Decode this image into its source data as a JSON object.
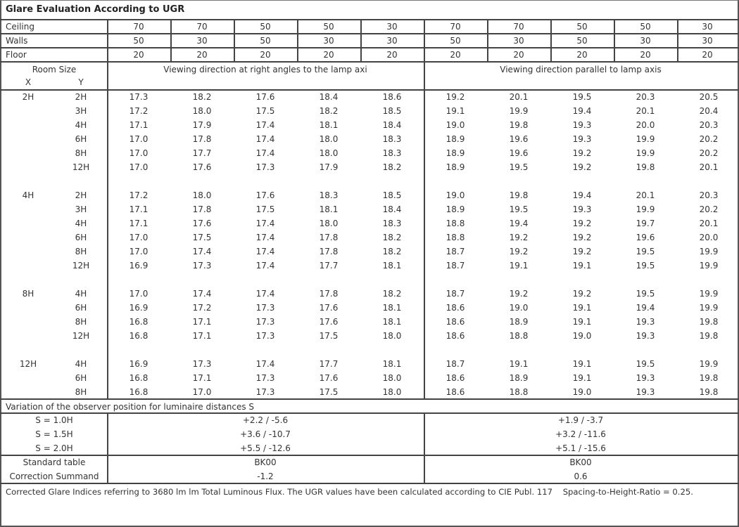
{
  "title": "Glare Evaluation According to UGR",
  "reflectances": [
    {
      "label": "Ceiling",
      "values": [
        "70",
        "70",
        "50",
        "50",
        "30",
        "70",
        "70",
        "50",
        "50",
        "30"
      ]
    },
    {
      "label": "Walls",
      "values": [
        "50",
        "30",
        "50",
        "30",
        "30",
        "50",
        "30",
        "50",
        "30",
        "30"
      ]
    },
    {
      "label": "Floor",
      "values": [
        "20",
        "20",
        "20",
        "20",
        "20",
        "20",
        "20",
        "20",
        "20",
        "20"
      ]
    }
  ],
  "room_size": {
    "label": "Room Size",
    "x": "X",
    "y": "Y"
  },
  "directions": [
    "Viewing direction at right angles to the lamp axi",
    "Viewing direction parallel to lamp axis"
  ],
  "groups": [
    {
      "x": "2H",
      "rows": [
        {
          "y": "2H",
          "v": [
            "17.3",
            "18.2",
            "17.6",
            "18.4",
            "18.6",
            "19.2",
            "20.1",
            "19.5",
            "20.3",
            "20.5"
          ]
        },
        {
          "y": "3H",
          "v": [
            "17.2",
            "18.0",
            "17.5",
            "18.2",
            "18.5",
            "19.1",
            "19.9",
            "19.4",
            "20.1",
            "20.4"
          ]
        },
        {
          "y": "4H",
          "v": [
            "17.1",
            "17.9",
            "17.4",
            "18.1",
            "18.4",
            "19.0",
            "19.8",
            "19.3",
            "20.0",
            "20.3"
          ]
        },
        {
          "y": "6H",
          "v": [
            "17.0",
            "17.8",
            "17.4",
            "18.0",
            "18.3",
            "18.9",
            "19.6",
            "19.3",
            "19.9",
            "20.2"
          ]
        },
        {
          "y": "8H",
          "v": [
            "17.0",
            "17.7",
            "17.4",
            "18.0",
            "18.3",
            "18.9",
            "19.6",
            "19.2",
            "19.9",
            "20.2"
          ]
        },
        {
          "y": "12H",
          "v": [
            "17.0",
            "17.6",
            "17.3",
            "17.9",
            "18.2",
            "18.9",
            "19.5",
            "19.2",
            "19.8",
            "20.1"
          ]
        }
      ]
    },
    {
      "x": "4H",
      "rows": [
        {
          "y": "2H",
          "v": [
            "17.2",
            "18.0",
            "17.6",
            "18.3",
            "18.5",
            "19.0",
            "19.8",
            "19.4",
            "20.1",
            "20.3"
          ]
        },
        {
          "y": "3H",
          "v": [
            "17.1",
            "17.8",
            "17.5",
            "18.1",
            "18.4",
            "18.9",
            "19.5",
            "19.3",
            "19.9",
            "20.2"
          ]
        },
        {
          "y": "4H",
          "v": [
            "17.1",
            "17.6",
            "17.4",
            "18.0",
            "18.3",
            "18.8",
            "19.4",
            "19.2",
            "19.7",
            "20.1"
          ]
        },
        {
          "y": "6H",
          "v": [
            "17.0",
            "17.5",
            "17.4",
            "17.8",
            "18.2",
            "18.8",
            "19.2",
            "19.2",
            "19.6",
            "20.0"
          ]
        },
        {
          "y": "8H",
          "v": [
            "17.0",
            "17.4",
            "17.4",
            "17.8",
            "18.2",
            "18.7",
            "19.2",
            "19.2",
            "19.5",
            "19.9"
          ]
        },
        {
          "y": "12H",
          "v": [
            "16.9",
            "17.3",
            "17.4",
            "17.7",
            "18.1",
            "18.7",
            "19.1",
            "19.1",
            "19.5",
            "19.9"
          ]
        }
      ]
    },
    {
      "x": "8H",
      "rows": [
        {
          "y": "4H",
          "v": [
            "17.0",
            "17.4",
            "17.4",
            "17.8",
            "18.2",
            "18.7",
            "19.2",
            "19.2",
            "19.5",
            "19.9"
          ]
        },
        {
          "y": "6H",
          "v": [
            "16.9",
            "17.2",
            "17.3",
            "17.6",
            "18.1",
            "18.6",
            "19.0",
            "19.1",
            "19.4",
            "19.9"
          ]
        },
        {
          "y": "8H",
          "v": [
            "16.8",
            "17.1",
            "17.3",
            "17.6",
            "18.1",
            "18.6",
            "18.9",
            "19.1",
            "19.3",
            "19.8"
          ]
        },
        {
          "y": "12H",
          "v": [
            "16.8",
            "17.1",
            "17.3",
            "17.5",
            "18.0",
            "18.6",
            "18.8",
            "19.0",
            "19.3",
            "19.8"
          ]
        }
      ]
    },
    {
      "x": "12H",
      "rows": [
        {
          "y": "4H",
          "v": [
            "16.9",
            "17.3",
            "17.4",
            "17.7",
            "18.1",
            "18.7",
            "19.1",
            "19.1",
            "19.5",
            "19.9"
          ]
        },
        {
          "y": "6H",
          "v": [
            "16.8",
            "17.1",
            "17.3",
            "17.6",
            "18.0",
            "18.6",
            "18.9",
            "19.1",
            "19.3",
            "19.8"
          ]
        },
        {
          "y": "8H",
          "v": [
            "16.8",
            "17.0",
            "17.3",
            "17.5",
            "18.0",
            "18.6",
            "18.8",
            "19.0",
            "19.3",
            "19.8"
          ]
        }
      ]
    }
  ],
  "variation": {
    "label": "Variation of the observer position for luminaire distances S",
    "rows": [
      {
        "s": "S = 1.0H",
        "a": "+2.2 / -5.6",
        "b": "+1.9 / -3.7"
      },
      {
        "s": "S = 1.5H",
        "a": "+3.6 / -10.7",
        "b": "+3.2 / -11.6"
      },
      {
        "s": "S = 2.0H",
        "a": "+5.5 / -12.6",
        "b": "+5.1 / -15.6"
      }
    ]
  },
  "standard_table": {
    "label": "Standard table",
    "a": "BK00",
    "b": "BK00"
  },
  "correction": {
    "label": "Correction Summand",
    "a": "-1.2",
    "b": "0.6"
  },
  "footer": "Corrected Glare Indices referring to 3680 lm lm Total Luminous Flux. The UGR values have been calculated according to CIE Publ. 117    Spacing-to-Height-Ratio = 0.25."
}
